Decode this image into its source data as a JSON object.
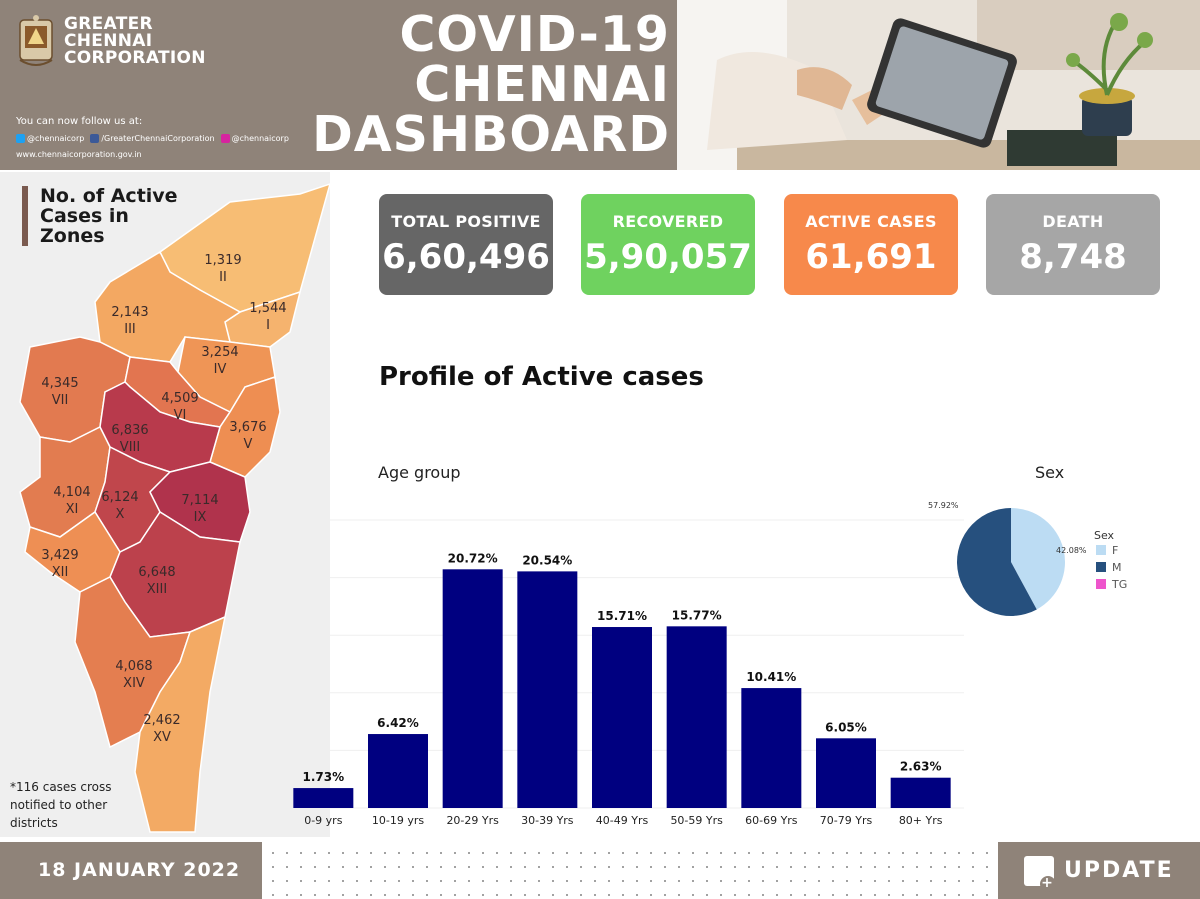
{
  "header": {
    "org_name_line1": "GREATER",
    "org_name_line2": "CHENNAI",
    "org_name_line3": "CORPORATION",
    "follow_text": "You can now follow us at:",
    "twitter": "@chennaicorp",
    "facebook": "/GreaterChennaiCorporation",
    "instagram": "@chennaicorp",
    "website": "www.chennaicorporation.gov.in",
    "title_line1": "COVID-19",
    "title_line2": "CHENNAI",
    "title_line3": "DASHBOARD"
  },
  "map": {
    "title": "No. of Active Cases in Zones",
    "note": "*116 cases cross notified to other districts",
    "zones": [
      {
        "roman": "I",
        "cases": "1,544",
        "color": "#f5b36e"
      },
      {
        "roman": "II",
        "cases": "1,319",
        "color": "#f7bd74"
      },
      {
        "roman": "III",
        "cases": "2,143",
        "color": "#f3a862"
      },
      {
        "roman": "IV",
        "cases": "3,254",
        "color": "#ef9556"
      },
      {
        "roman": "V",
        "cases": "3,676",
        "color": "#ee8e52"
      },
      {
        "roman": "VI",
        "cases": "4,509",
        "color": "#e27550"
      },
      {
        "roman": "VII",
        "cases": "4,345",
        "color": "#e27a50"
      },
      {
        "roman": "VIII",
        "cases": "6,836",
        "color": "#b83a4c"
      },
      {
        "roman": "IX",
        "cases": "7,114",
        "color": "#b0334c"
      },
      {
        "roman": "X",
        "cases": "6,124",
        "color": "#c0464c"
      },
      {
        "roman": "XI",
        "cases": "4,104",
        "color": "#e27c50"
      },
      {
        "roman": "XII",
        "cases": "3,429",
        "color": "#ee8f54"
      },
      {
        "roman": "XIII",
        "cases": "6,648",
        "color": "#bc414c"
      },
      {
        "roman": "XIV",
        "cases": "4,068",
        "color": "#e47e50"
      },
      {
        "roman": "XV",
        "cases": "2,462",
        "color": "#f3aa64"
      }
    ]
  },
  "stats": [
    {
      "label": "TOTAL POSITIVE",
      "value": "6,60,496",
      "color": "#666666"
    },
    {
      "label": "RECOVERED",
      "value": "5,90,057",
      "color": "#6fd25f"
    },
    {
      "label": "ACTIVE CASES",
      "value": "61,691",
      "color": "#f7894b"
    },
    {
      "label": "DEATH",
      "value": "8,748",
      "color": "#a6a6a6"
    }
  ],
  "section_title": "Profile of Active cases",
  "chart_data": [
    {
      "type": "bar",
      "title": "Age group",
      "categories": [
        "0-9 yrs",
        "10-19 yrs",
        "20-29 Yrs",
        "30-39 Yrs",
        "40-49 Yrs",
        "50-59 Yrs",
        "60-69 Yrs",
        "70-79 Yrs",
        "80+ Yrs"
      ],
      "values": [
        1.73,
        6.42,
        20.72,
        20.54,
        15.71,
        15.77,
        10.41,
        6.05,
        2.63
      ],
      "data_labels": [
        "1.73%",
        "6.42%",
        "20.72%",
        "20.54%",
        "15.71%",
        "15.77%",
        "10.41%",
        "6.05%",
        "2.63%"
      ],
      "ylim": [
        0,
        25
      ],
      "grid": true,
      "color": "#000080"
    },
    {
      "type": "pie",
      "title": "Sex",
      "legend_title": "Sex",
      "labels": [
        "F",
        "M",
        "TG"
      ],
      "values": [
        42.08,
        57.92,
        0
      ],
      "data_labels": [
        "42.08%",
        "57.92%",
        ""
      ],
      "colors": [
        "#bcdcf3",
        "#26507e",
        "#ee55cc"
      ],
      "legend_position": "right"
    }
  ],
  "footer": {
    "date": "18 JANUARY 2022",
    "update": "UPDATE"
  }
}
